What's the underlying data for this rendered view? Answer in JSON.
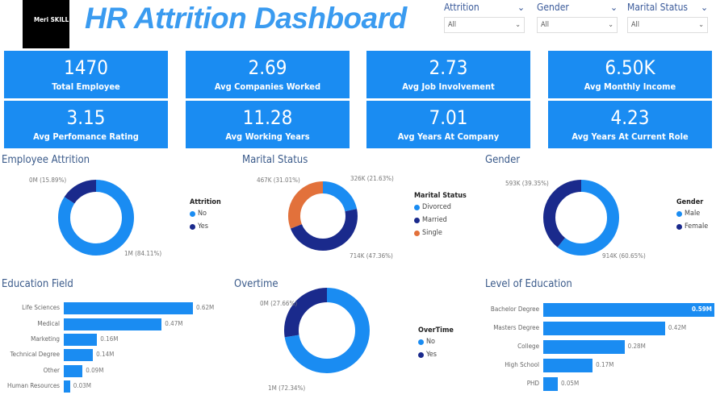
{
  "header": {
    "logo_text": "Meri SKILL",
    "title": "HR Attrition Dashboard",
    "slicers": [
      {
        "label": "Attrition",
        "value": "All"
      },
      {
        "label": "Gender",
        "value": "All"
      },
      {
        "label": "Marital Status",
        "value": "All"
      }
    ]
  },
  "kpis": [
    {
      "value": "1470",
      "label": "Total Employee"
    },
    {
      "value": "2.69",
      "label": "Avg Companies Worked"
    },
    {
      "value": "2.73",
      "label": "Avg Job Involvement"
    },
    {
      "value": "6.50K",
      "label": "Avg Monthly Income"
    },
    {
      "value": "3.15",
      "label": "Avg Perfomance Rating"
    },
    {
      "value": "11.28",
      "label": "Avg Working Years"
    },
    {
      "value": "7.01",
      "label": "Avg Years At Company"
    },
    {
      "value": "4.23",
      "label": "Avg Years At Current Role"
    }
  ],
  "colors": {
    "light": "#1A8CF2",
    "dark": "#1A2A8C",
    "orange": "#E2713B"
  },
  "chart_data": [
    {
      "type": "pie",
      "title": "Employee Attrition",
      "legend_title": "Attrition",
      "slices": [
        {
          "name": "No",
          "percent": 84.11,
          "label": "1M (84.11%)",
          "color": "#1A8CF2"
        },
        {
          "name": "Yes",
          "percent": 15.89,
          "label": "0M (15.89%)",
          "color": "#1A2A8C"
        }
      ]
    },
    {
      "type": "pie",
      "title": "Marital Status",
      "legend_title": "Marital Status",
      "slices": [
        {
          "name": "Divorced",
          "percent": 21.63,
          "label": "326K (21.63%)",
          "color": "#1A8CF2"
        },
        {
          "name": "Married",
          "percent": 47.36,
          "label": "714K (47.36%)",
          "color": "#1A2A8C"
        },
        {
          "name": "Single",
          "percent": 31.01,
          "label": "467K (31.01%)",
          "color": "#E2713B"
        }
      ]
    },
    {
      "type": "pie",
      "title": "Gender",
      "legend_title": "Gender",
      "slices": [
        {
          "name": "Male",
          "percent": 60.65,
          "label": "914K (60.65%)",
          "color": "#1A8CF2"
        },
        {
          "name": "Female",
          "percent": 39.35,
          "label": "593K (39.35%)",
          "color": "#1A2A8C"
        }
      ]
    },
    {
      "type": "bar",
      "title": "Education Field",
      "categories": [
        "Life Sciences",
        "Medical",
        "Marketing",
        "Technical Degree",
        "Other",
        "Human Resources"
      ],
      "values": [
        0.62,
        0.47,
        0.16,
        0.14,
        0.09,
        0.03
      ],
      "labels": [
        "0.62M",
        "0.47M",
        "0.16M",
        "0.14M",
        "0.09M",
        "0.03M"
      ]
    },
    {
      "type": "pie",
      "title": "Overtime",
      "legend_title": "OverTime",
      "slices": [
        {
          "name": "No",
          "percent": 72.34,
          "label": "1M (72.34%)",
          "color": "#1A8CF2"
        },
        {
          "name": "Yes",
          "percent": 27.66,
          "label": "0M (27.66%)",
          "color": "#1A2A8C"
        }
      ]
    },
    {
      "type": "bar",
      "title": "Level of Education",
      "categories": [
        "Bachelor Degree",
        "Masters Degree",
        "College",
        "High School",
        "PHD"
      ],
      "values": [
        0.59,
        0.42,
        0.28,
        0.17,
        0.05
      ],
      "labels": [
        "0.59M",
        "0.42M",
        "0.28M",
        "0.17M",
        "0.05M"
      ]
    }
  ]
}
